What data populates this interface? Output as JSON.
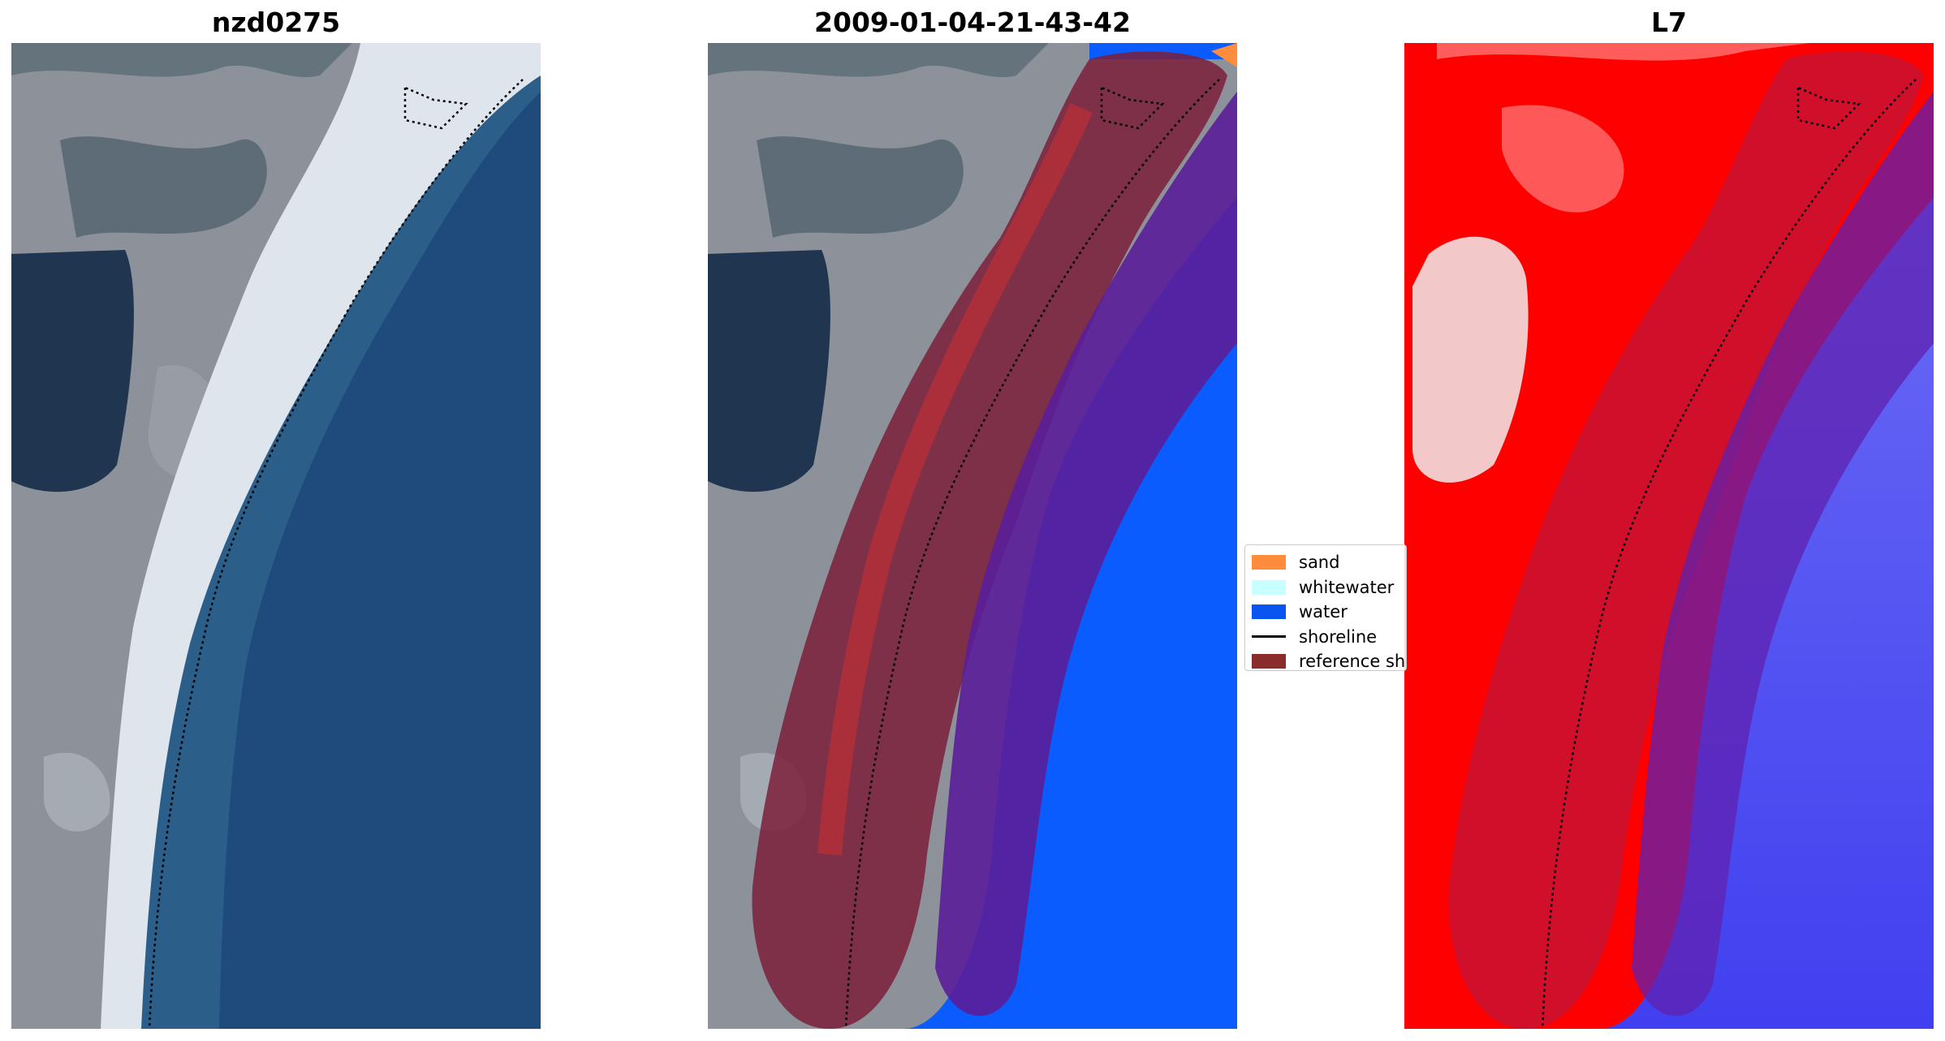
{
  "panels": [
    {
      "title": "nzd0275"
    },
    {
      "title": "2009-01-04-21-43-42"
    },
    {
      "title": "L7"
    }
  ],
  "legend": {
    "items": [
      {
        "label": "sand",
        "color": "#ff8c3c"
      },
      {
        "label": "whitewater",
        "color": "#c8ffff"
      },
      {
        "label": "water",
        "color": "#0a55f0"
      },
      {
        "label": "shoreline",
        "color": "#000000"
      },
      {
        "label": "reference sh",
        "color": "#8b2c2c"
      }
    ]
  },
  "colors": {
    "ocean": "#1d4a7e",
    "land": "#8a8f98",
    "beach": "#dde3ea",
    "classified_water": "#0a5cff",
    "reference_buffer": "#7a1f3a",
    "index_red": "#ff0000",
    "index_blue": "#4a4af0"
  }
}
